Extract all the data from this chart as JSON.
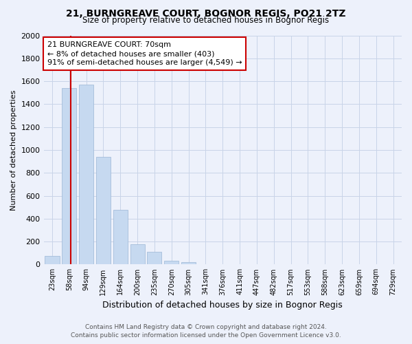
{
  "title": "21, BURNGREAVE COURT, BOGNOR REGIS, PO21 2TZ",
  "subtitle": "Size of property relative to detached houses in Bognor Regis",
  "xlabel": "Distribution of detached houses by size in Bognor Regis",
  "ylabel": "Number of detached properties",
  "footer_line1": "Contains HM Land Registry data © Crown copyright and database right 2024.",
  "footer_line2": "Contains public sector information licensed under the Open Government Licence v3.0.",
  "categories": [
    "23sqm",
    "58sqm",
    "94sqm",
    "129sqm",
    "164sqm",
    "200sqm",
    "235sqm",
    "270sqm",
    "305sqm",
    "341sqm",
    "376sqm",
    "411sqm",
    "447sqm",
    "482sqm",
    "517sqm",
    "553sqm",
    "588sqm",
    "623sqm",
    "659sqm",
    "694sqm",
    "729sqm"
  ],
  "values": [
    75,
    1540,
    1570,
    940,
    480,
    175,
    110,
    30,
    18,
    5,
    3,
    2,
    0,
    0,
    0,
    0,
    0,
    0,
    0,
    0,
    0
  ],
  "bar_color": "#c6d9f0",
  "bar_edge_color": "#9ab5d5",
  "grid_color": "#c8d4e8",
  "annotation_line1": "21 BURNGREAVE COURT: 70sqm",
  "annotation_line2": "← 8% of detached houses are smaller (403)",
  "annotation_line3": "91% of semi-detached houses are larger (4,549) →",
  "annotation_box_color": "#ffffff",
  "annotation_border_color": "#cc0000",
  "vline_color": "#cc0000",
  "vline_x_bar_index": 1,
  "ylim": [
    0,
    2000
  ],
  "yticks": [
    0,
    200,
    400,
    600,
    800,
    1000,
    1200,
    1400,
    1600,
    1800,
    2000
  ],
  "background_color": "#edf1fb",
  "plot_background": "#edf1fb",
  "title_fontsize": 10,
  "subtitle_fontsize": 8.5,
  "ylabel_fontsize": 8,
  "xlabel_fontsize": 9,
  "tick_fontsize": 7,
  "annotation_fontsize": 8,
  "footer_fontsize": 6.5
}
